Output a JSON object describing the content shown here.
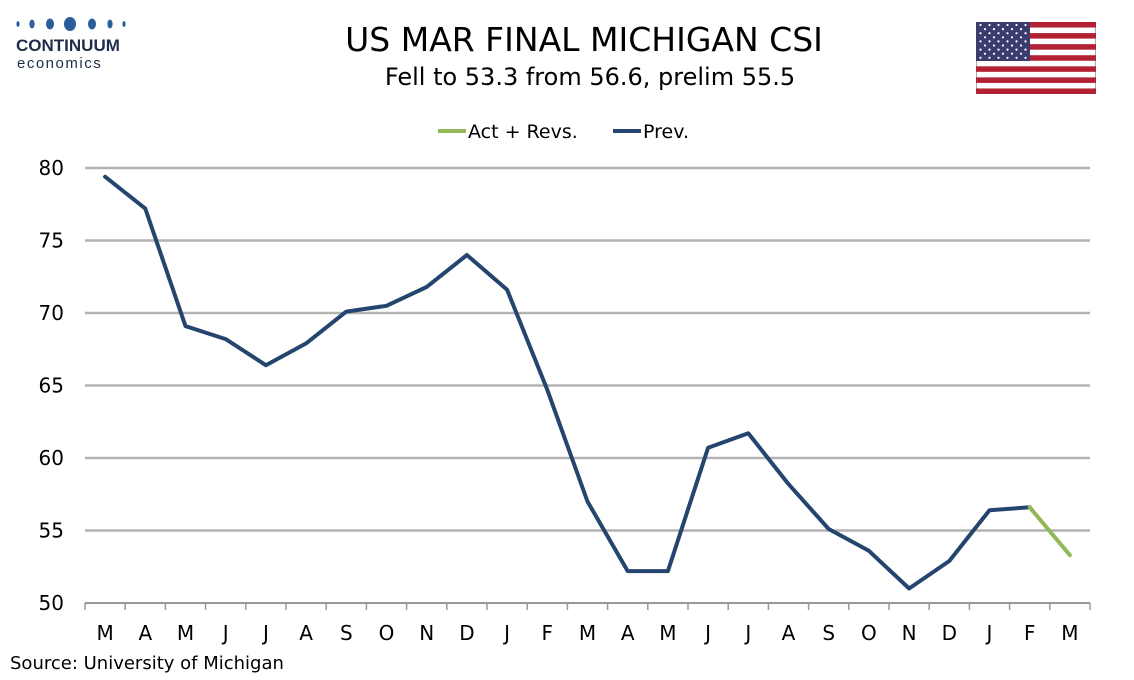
{
  "logo": {
    "name": "CONTINUUM",
    "sub": "economics"
  },
  "source": "Source: University of Michigan",
  "colors": {
    "prev": "#24456e",
    "act": "#93b858",
    "grid": "#b3b3b3",
    "logo": "#2c5d9b"
  },
  "chart_data": {
    "type": "line",
    "title": "US MAR FINAL MICHIGAN CSI",
    "subtitle": "Fell to 53.3 from 56.6, prelim 55.5",
    "categories": [
      "M",
      "A",
      "M",
      "J",
      "J",
      "A",
      "S",
      "O",
      "N",
      "D",
      "J",
      "F",
      "M",
      "A",
      "M",
      "J",
      "J",
      "A",
      "S",
      "O",
      "N",
      "D",
      "J",
      "F",
      "M"
    ],
    "ylim": [
      50,
      80
    ],
    "yticks": [
      50,
      55,
      60,
      65,
      70,
      75,
      80
    ],
    "grid": true,
    "legend_position": "top-center",
    "series": [
      {
        "name": "Act + Revs.",
        "color_key": "act",
        "values": [
          null,
          null,
          null,
          null,
          null,
          null,
          null,
          null,
          null,
          null,
          null,
          null,
          null,
          null,
          null,
          null,
          null,
          null,
          null,
          null,
          null,
          null,
          null,
          56.6,
          53.3
        ]
      },
      {
        "name": "Prev.",
        "color_key": "prev",
        "values": [
          79.4,
          77.2,
          69.1,
          68.2,
          66.4,
          67.9,
          70.1,
          70.5,
          71.8,
          74.0,
          71.6,
          64.7,
          57.0,
          52.2,
          52.2,
          60.7,
          61.7,
          58.2,
          55.1,
          53.6,
          51.0,
          52.9,
          56.4,
          56.6,
          null
        ]
      }
    ]
  }
}
